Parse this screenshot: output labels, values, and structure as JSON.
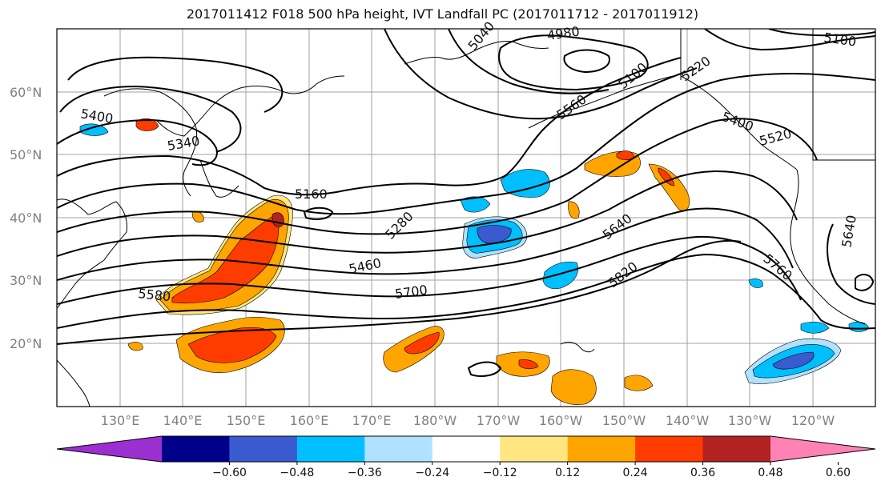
{
  "title": "2017011412 F018 500 hPa height, IVT Landfall PC (2017011712 - 2017011912)",
  "lat_labels": [
    "60°N",
    "50°N",
    "40°N",
    "30°N",
    "20°N"
  ],
  "lon_labels": [
    "130°E",
    "140°E",
    "150°E",
    "160°E",
    "170°E",
    "180°W",
    "170°W",
    "160°W",
    "150°W",
    "140°W",
    "130°W",
    "120°W"
  ],
  "contour_labels": [
    "5400",
    "5340",
    "5160",
    "5280",
    "5460",
    "5580",
    "5700",
    "5820",
    "5640",
    "5760",
    "5640",
    "5100",
    "5220",
    "5100",
    "4980",
    "5040",
    "5520",
    "5560",
    "5400"
  ],
  "colorbar": {
    "ticks": [
      "−0.60",
      "−0.48",
      "−0.36",
      "−0.24",
      "−0.12",
      "0.12",
      "0.24",
      "0.36",
      "0.48",
      "0.60"
    ],
    "colors": [
      "#9b30d0",
      "#00008b",
      "#3a5bcf",
      "#00bfff",
      "#b0e2ff",
      "#ffffff",
      "#ffe680",
      "#ffa500",
      "#ff3c00",
      "#b22222",
      "#ff82b4"
    ]
  }
}
